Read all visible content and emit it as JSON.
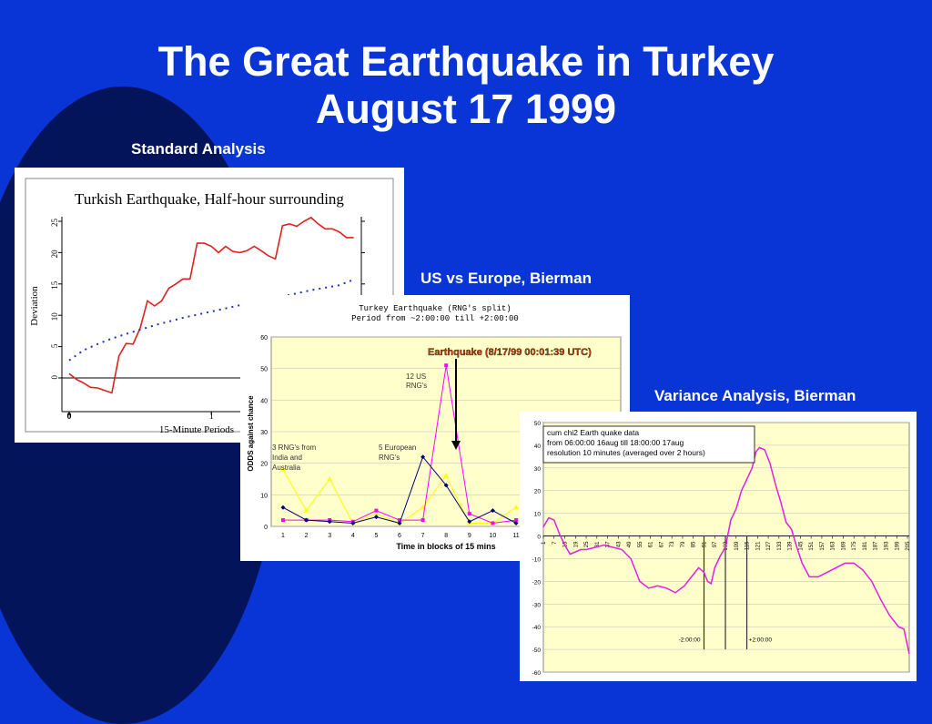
{
  "slide": {
    "title_line1": "The Great Earthquake in Turkey",
    "title_line2": "August 17 1999"
  },
  "captions": {
    "c1": "Standard Analysis",
    "c2": "US vs Europe, Bierman",
    "c3": "Variance Analysis, Bierman"
  },
  "colors": {
    "background": "#0a35d6",
    "swoosh": "#03145a",
    "c1_series": "#e02020",
    "c1_expect": "#2030c0",
    "c2_plot_bg": "#ffffcc",
    "c2_eu": "#000080",
    "c2_us": "#ff00ff",
    "c2_aus": "#ffff00",
    "c3_plot_bg": "#ffffcc",
    "c3_series": "#e020e0"
  },
  "chart_data": [
    {
      "type": "line",
      "title": "Turkish Earthquake, Half-hour surrounding",
      "xlabel": "15-Minute Periods",
      "ylabel": "Deviation",
      "xlim": [
        0,
        2
      ],
      "ylim": [
        -3,
        25
      ],
      "x_ticks": [
        "0",
        "1"
      ],
      "y_ticks": [
        "0",
        "5",
        "10",
        "15",
        "20",
        "25"
      ],
      "series": [
        {
          "style": "solid",
          "x": [
            0,
            0.05,
            0.1,
            0.15,
            0.2,
            0.25,
            0.3,
            0.35,
            0.4,
            0.45,
            0.5,
            0.55,
            0.6,
            0.65,
            0.7,
            0.75,
            0.8,
            0.85,
            0.9,
            0.95,
            1,
            1.05,
            1.1,
            1.15,
            1.2,
            1.25,
            1.3,
            1.35,
            1.4,
            1.45,
            1.5,
            1.55,
            1.6,
            1.65,
            1.7,
            1.75,
            1.8,
            1.85,
            1.9,
            1.95,
            2
          ],
          "y": [
            0.7,
            -0.2,
            -0.8,
            -1.5,
            -1.6,
            -2.0,
            -2.4,
            3.5,
            5.5,
            5.4,
            8.0,
            12.3,
            11.5,
            12.3,
            14.3,
            15.0,
            15.8,
            15.8,
            21.5,
            21.5,
            21.0,
            20.0,
            21.0,
            20.2,
            20.0,
            20.3,
            21.0,
            20.3,
            19.5,
            19.0,
            24.3,
            24.6,
            24.2,
            25.0,
            25.6,
            24.6,
            23.8,
            23.8,
            23.3,
            22.4,
            22.4
          ]
        },
        {
          "style": "dotted",
          "x": [
            0,
            0.1,
            0.2,
            0.3,
            0.4,
            0.5,
            0.6,
            0.7,
            0.8,
            0.9,
            1.0,
            1.1,
            1.2,
            1.3,
            1.4,
            1.5,
            1.6,
            1.7,
            1.8,
            1.9,
            2.0
          ],
          "y": [
            2.8,
            4.4,
            5.4,
            6.3,
            7.0,
            7.7,
            8.4,
            9.0,
            9.6,
            10.1,
            10.6,
            11.1,
            11.6,
            12.1,
            12.6,
            13.0,
            13.5,
            14.0,
            14.4,
            14.8,
            15.7
          ]
        }
      ]
    },
    {
      "type": "line",
      "title": "Turkey Earthquake (RNG's split)",
      "subtitle": "Period from ~2:00:00 till +2:00:00",
      "xlabel": "Time in blocks of 15 mins",
      "ylabel": "ODDS against chance",
      "ylim": [
        0,
        60
      ],
      "y_ticks": [
        "0",
        "10",
        "20",
        "30",
        "40",
        "50",
        "60"
      ],
      "categories": [
        "1",
        "2",
        "3",
        "4",
        "5",
        "6",
        "7",
        "8",
        "9",
        "10",
        "11"
      ],
      "series": [
        {
          "values": [
            6,
            2,
            1.5,
            1,
            3,
            1,
            22,
            13,
            1.5,
            5,
            1
          ]
        },
        {
          "values": [
            2,
            2,
            2,
            1.5,
            5,
            2,
            2,
            51,
            4,
            1,
            2
          ]
        },
        {
          "values": [
            18,
            5,
            15,
            1,
            4,
            1,
            6,
            16,
            1,
            1,
            6
          ]
        }
      ],
      "annotations": [
        "Earthquake (8/17/99 00:01:39 UTC)",
        "12 US RNG's",
        "5 European RNG's",
        "3 RNG's from India and Australia"
      ]
    },
    {
      "type": "line",
      "title": "cum chi2 Earth quake data",
      "legend_lines": [
        "cum chi2  Earth quake data",
        "from 06:00:00 16aug till 18:00:00 17aug",
        "resolution 10 minutes (averaged over 2 hours)"
      ],
      "ylim": [
        -60,
        50
      ],
      "y_ticks": [
        "50",
        "40",
        "30",
        "20",
        "10",
        "0",
        "-10",
        "-20",
        "-30",
        "-40",
        "-50",
        "-60"
      ],
      "x_ticks": [
        "1",
        "7",
        "13",
        "19",
        "25",
        "31",
        "37",
        "43",
        "49",
        "55",
        "61",
        "67",
        "73",
        "79",
        "85",
        "91",
        "97",
        "103",
        "109",
        "115",
        "121",
        "127",
        "133",
        "139",
        "145",
        "151",
        "157",
        "163",
        "169",
        "175",
        "181",
        "187",
        "193",
        "199",
        "205"
      ],
      "markers": [
        "-2:00:00",
        "+2:00:00"
      ],
      "x": [
        1,
        4,
        7,
        10,
        13,
        16,
        19,
        22,
        25,
        30,
        35,
        40,
        45,
        50,
        55,
        60,
        65,
        70,
        75,
        80,
        85,
        88,
        91,
        93,
        95,
        97,
        100,
        103,
        106,
        109,
        112,
        115,
        118,
        120,
        122,
        125,
        128,
        131,
        134,
        137,
        140,
        143,
        146,
        150,
        155,
        160,
        165,
        170,
        175,
        180,
        185,
        190,
        195,
        200,
        203,
        206
      ],
      "y": [
        4,
        8,
        7,
        1,
        -4,
        -8,
        -7,
        -6,
        -6,
        -5,
        -4,
        -5,
        -6,
        -10,
        -20,
        -23,
        -22,
        -23,
        -25,
        -22,
        -17,
        -14,
        -16,
        -20,
        -21,
        -14,
        -9,
        -5,
        7,
        12,
        20,
        25,
        30,
        37,
        39,
        38,
        32,
        23,
        15,
        6,
        3,
        -5,
        -12,
        -18,
        -18,
        -16,
        -14,
        -12,
        -12,
        -15,
        -20,
        -28,
        -35,
        -40,
        -41,
        -52
      ],
      "spikes_x": [
        91,
        103,
        115
      ]
    }
  ]
}
